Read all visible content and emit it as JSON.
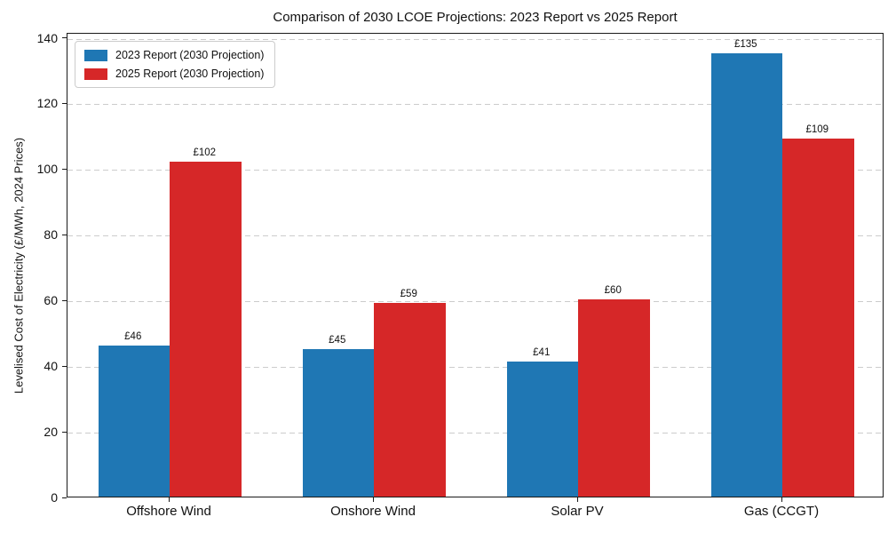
{
  "title": "Comparison of 2030 LCOE Projections: 2023 Report vs 2025 Report",
  "chart_data": {
    "type": "bar",
    "title": "Comparison of 2030 LCOE Projections: 2023 Report vs 2025 Report",
    "xlabel": "",
    "ylabel": "Levelised Cost of Electricity (£/MWh, 2024 Prices)",
    "categories": [
      "Offshore Wind",
      "Onshore Wind",
      "Solar PV",
      "Gas (CCGT)"
    ],
    "series": [
      {
        "name": "2023 Report (2030 Projection)",
        "color": "#1f77b4",
        "values": [
          46,
          45,
          41,
          135
        ],
        "value_labels": [
          "£46",
          "£45",
          "£41",
          "£135"
        ]
      },
      {
        "name": "2025 Report (2030 Projection)",
        "color": "#d62728",
        "values": [
          102,
          59,
          60,
          109
        ],
        "value_labels": [
          "£102",
          "£59",
          "£60",
          "£109"
        ]
      }
    ],
    "ylim": [
      0,
      141.5
    ],
    "yticks": [
      0,
      20,
      40,
      60,
      80,
      100,
      120,
      140
    ],
    "grid": "horizontal-dashed",
    "grid_color": "#cccccc",
    "legend_position": "upper-left",
    "bar_group_fraction": 0.7
  }
}
